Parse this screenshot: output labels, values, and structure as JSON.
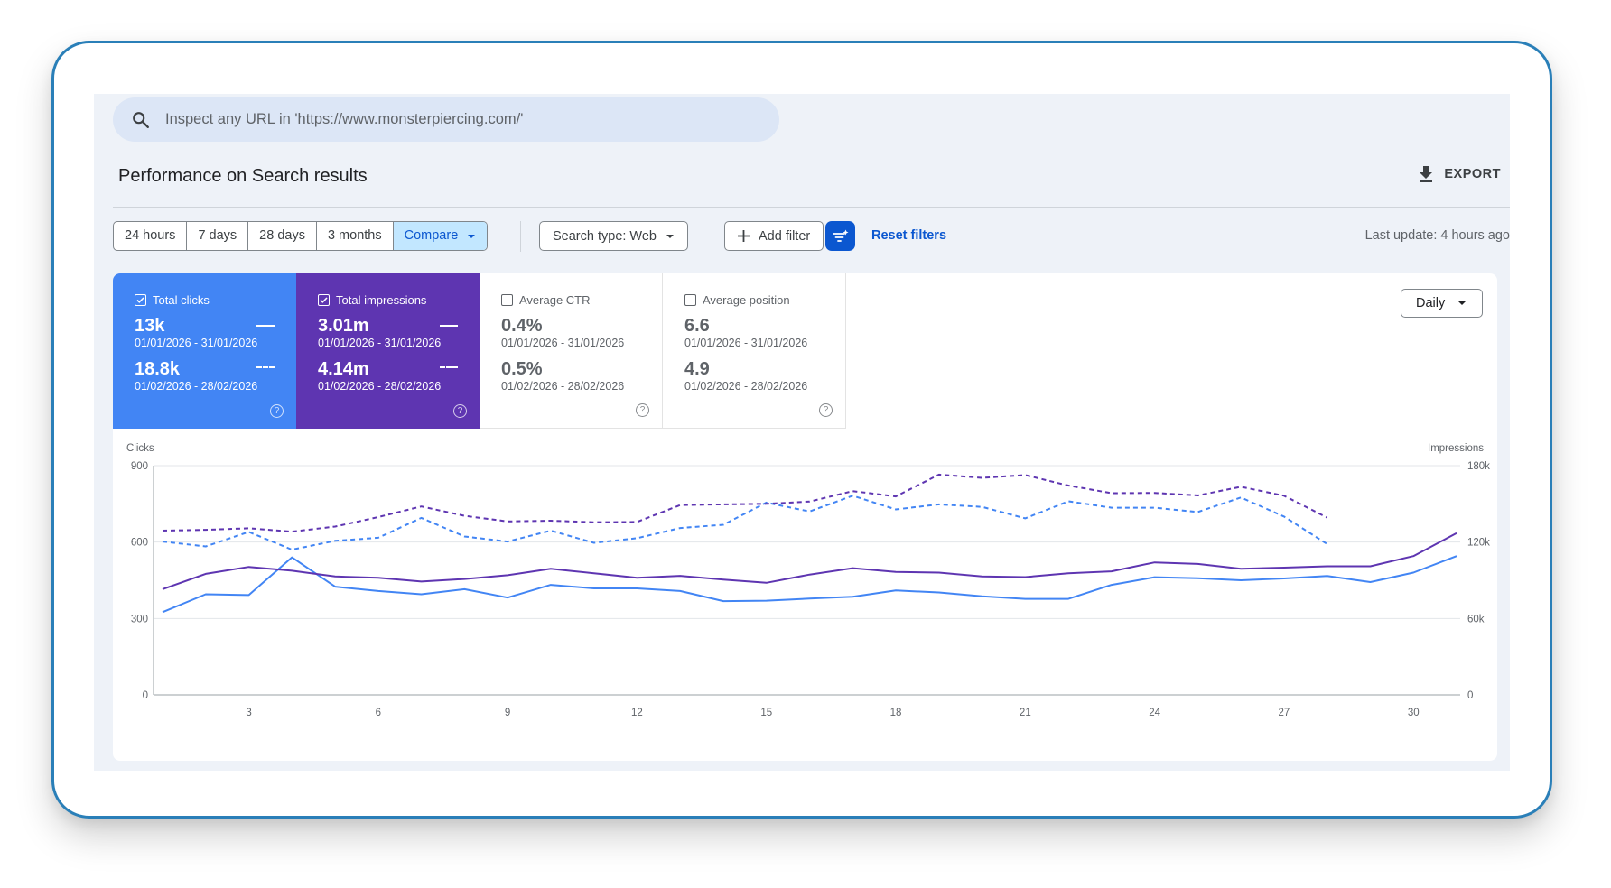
{
  "search": {
    "placeholder": "Inspect any URL in 'https://www.monsterpiercing.com/'"
  },
  "header": {
    "title": "Performance on Search results",
    "export_label": "EXPORT"
  },
  "toolbar": {
    "ranges": [
      "24 hours",
      "7 days",
      "28 days",
      "3 months"
    ],
    "compare_label": "Compare",
    "search_type_label": "Search type: Web",
    "add_filter_label": "Add filter",
    "reset_label": "Reset filters",
    "last_update": "Last update: 4 hours ago"
  },
  "metrics": [
    {
      "label": "Total clicks",
      "checked": true,
      "value1": "13k",
      "range1": "01/01/2026 - 31/01/2026",
      "value2": "18.8k",
      "range2": "01/02/2026 - 28/02/2026",
      "color": "#4285f4"
    },
    {
      "label": "Total impressions",
      "checked": true,
      "value1": "3.01m",
      "range1": "01/01/2026 - 31/01/2026",
      "value2": "4.14m",
      "range2": "01/02/2026 - 28/02/2026",
      "color": "#5e35b1"
    },
    {
      "label": "Average CTR",
      "checked": false,
      "value1": "0.4%",
      "range1": "01/01/2026 - 31/01/2026",
      "value2": "0.5%",
      "range2": "01/02/2026 - 28/02/2026"
    },
    {
      "label": "Average position",
      "checked": false,
      "value1": "6.6",
      "range1": "01/01/2026 - 31/01/2026",
      "value2": "4.9",
      "range2": "01/02/2026 - 28/02/2026"
    }
  ],
  "granularity": "Daily",
  "chart_data": {
    "type": "line",
    "ylabel": "Clicks",
    "y2label": "Impressions",
    "ylim": [
      0,
      900
    ],
    "y2lim": [
      0,
      180000
    ],
    "yticks": [
      "0",
      "300",
      "600",
      "900"
    ],
    "y2ticks": [
      "0",
      "60k",
      "120k",
      "180k"
    ],
    "xlim": [
      1,
      31
    ],
    "xticks": [
      "3",
      "6",
      "9",
      "12",
      "15",
      "18",
      "21",
      "24",
      "27",
      "30"
    ],
    "grid": true,
    "series": [
      {
        "color": "#4285f4",
        "style": "solid",
        "axis": "left",
        "x": [
          1,
          2,
          3,
          4,
          5,
          6,
          7,
          8,
          9,
          10,
          11,
          12,
          13,
          14,
          15,
          16,
          17,
          18,
          19,
          20,
          21,
          22,
          23,
          24,
          25,
          26,
          27,
          28,
          29,
          30,
          31
        ],
        "values": [
          325,
          395,
          392,
          540,
          425,
          408,
          395,
          415,
          382,
          432,
          418,
          418,
          408,
          368,
          370,
          378,
          385,
          410,
          402,
          387,
          377,
          377,
          432,
          462,
          458,
          450,
          457,
          467,
          443,
          480,
          545
        ]
      },
      {
        "color": "#5e35b1",
        "style": "solid",
        "axis": "right",
        "x": [
          1,
          2,
          3,
          4,
          5,
          6,
          7,
          8,
          9,
          10,
          11,
          12,
          13,
          14,
          15,
          16,
          17,
          18,
          19,
          20,
          21,
          22,
          23,
          24,
          25,
          26,
          27,
          28,
          29,
          30,
          31
        ],
        "values": [
          83000,
          95000,
          100500,
          97500,
          93000,
          92000,
          89000,
          91000,
          94000,
          99000,
          95500,
          92000,
          93500,
          90500,
          88000,
          94500,
          99500,
          96500,
          96000,
          93000,
          92500,
          95500,
          97000,
          104000,
          102800,
          99000,
          99900,
          101000,
          101000,
          109000,
          127000
        ]
      },
      {
        "color": "#4285f4",
        "style": "dashed",
        "axis": "left",
        "x": [
          1,
          2,
          3,
          4,
          5,
          6,
          7,
          8,
          9,
          10,
          11,
          12,
          13,
          14,
          15,
          16,
          17,
          18,
          19,
          20,
          21,
          22,
          23,
          24,
          25,
          26,
          27,
          28
        ],
        "values": [
          602,
          583,
          640,
          570,
          605,
          617,
          695,
          622,
          602,
          645,
          597,
          615,
          655,
          668,
          755,
          720,
          782,
          728,
          748,
          738,
          693,
          760,
          735,
          735,
          718,
          775,
          700,
          592
        ]
      },
      {
        "color": "#5e35b1",
        "style": "dashed",
        "axis": "right",
        "x": [
          1,
          2,
          3,
          4,
          5,
          6,
          7,
          8,
          9,
          10,
          11,
          12,
          13,
          14,
          15,
          16,
          17,
          18,
          19,
          20,
          21,
          22,
          23,
          24,
          25,
          26,
          27,
          28
        ],
        "values": [
          129000,
          129600,
          130800,
          128200,
          132200,
          139600,
          148000,
          140600,
          136200,
          136800,
          135600,
          135800,
          149000,
          149600,
          150000,
          151800,
          160000,
          155800,
          173000,
          170400,
          172600,
          164400,
          158400,
          158600,
          156600,
          163400,
          156400,
          139200
        ]
      }
    ]
  }
}
